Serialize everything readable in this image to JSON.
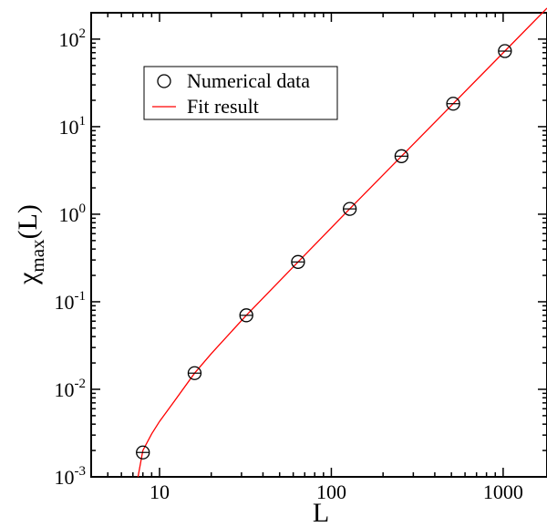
{
  "chart_data": {
    "type": "scatter",
    "title": "",
    "xlabel": "L",
    "ylabel": {
      "main": "χ",
      "subscript": "max",
      "suffix": "(L)"
    },
    "x_scale": "log",
    "y_scale": "log",
    "xlim": [
      4,
      1800
    ],
    "ylim": [
      0.001,
      200
    ],
    "x_ticks": [
      {
        "value": 10,
        "label": "10"
      },
      {
        "value": 100,
        "label": "100"
      },
      {
        "value": 1000,
        "label": "1000"
      }
    ],
    "y_ticks": [
      {
        "value": 0.001,
        "base": "10",
        "exp": "-3"
      },
      {
        "value": 0.01,
        "base": "10",
        "exp": "-2"
      },
      {
        "value": 0.1,
        "base": "10",
        "exp": "-1"
      },
      {
        "value": 1,
        "base": "10",
        "exp": "0"
      },
      {
        "value": 10,
        "base": "10",
        "exp": "1"
      },
      {
        "value": 100,
        "base": "10",
        "exp": "2"
      }
    ],
    "grid": false,
    "legend_position": "top-left",
    "series": [
      {
        "name": "Numerical data",
        "kind": "markers",
        "marker": "open-circle",
        "color": "#000000",
        "points": [
          {
            "x": 8,
            "y": 0.0019
          },
          {
            "x": 16,
            "y": 0.0153
          },
          {
            "x": 32,
            "y": 0.07
          },
          {
            "x": 64,
            "y": 0.285
          },
          {
            "x": 128,
            "y": 1.15
          },
          {
            "x": 256,
            "y": 4.6
          },
          {
            "x": 512,
            "y": 18.3
          },
          {
            "x": 1024,
            "y": 73
          }
        ]
      },
      {
        "name": "Fit result",
        "kind": "line",
        "color": "#ff0000",
        "points": [
          {
            "x": 7.5,
            "y": 0.001
          },
          {
            "x": 8,
            "y": 0.002
          },
          {
            "x": 9,
            "y": 0.0031
          },
          {
            "x": 10,
            "y": 0.0043
          },
          {
            "x": 12,
            "y": 0.007
          },
          {
            "x": 16,
            "y": 0.0153
          },
          {
            "x": 20,
            "y": 0.0255
          },
          {
            "x": 32,
            "y": 0.07
          },
          {
            "x": 64,
            "y": 0.285
          },
          {
            "x": 128,
            "y": 1.15
          },
          {
            "x": 256,
            "y": 4.6
          },
          {
            "x": 512,
            "y": 18.3
          },
          {
            "x": 1024,
            "y": 73
          },
          {
            "x": 1800,
            "y": 226
          }
        ]
      }
    ]
  }
}
